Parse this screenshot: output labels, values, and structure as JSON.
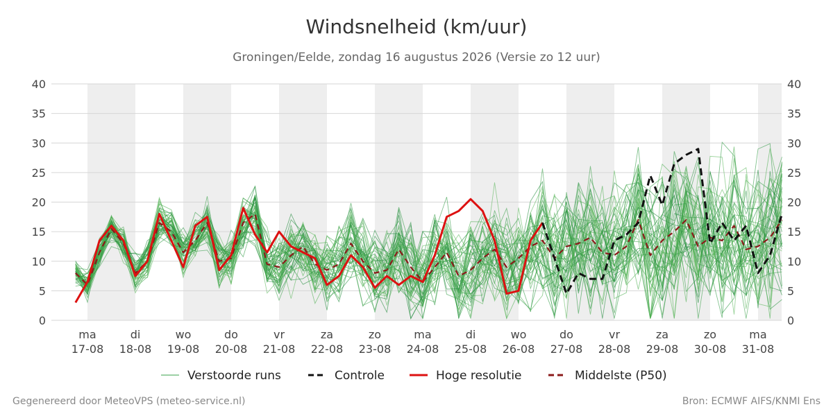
{
  "chart_data": {
    "type": "line",
    "title": "Windsnelheid (km/uur)",
    "subtitle": "Groningen/Eelde, zondag 16 augustus 2026 (Versie zo 12 uur)",
    "ylim": [
      0,
      40
    ],
    "yticks": [
      0,
      5,
      10,
      15,
      20,
      25,
      30,
      35,
      40
    ],
    "xlim": [
      -0.25,
      14.5
    ],
    "grid": true,
    "legend_position": "bottom",
    "day_ticks": [
      {
        "day": "ma",
        "date": "17-08"
      },
      {
        "day": "di",
        "date": "18-08"
      },
      {
        "day": "wo",
        "date": "19-08"
      },
      {
        "day": "do",
        "date": "20-08"
      },
      {
        "day": "vr",
        "date": "21-08"
      },
      {
        "day": "za",
        "date": "22-08"
      },
      {
        "day": "zo",
        "date": "23-08"
      },
      {
        "day": "ma",
        "date": "24-08"
      },
      {
        "day": "di",
        "date": "25-08"
      },
      {
        "day": "wo",
        "date": "26-08"
      },
      {
        "day": "do",
        "date": "27-08"
      },
      {
        "day": "vr",
        "date": "28-08"
      },
      {
        "day": "za",
        "date": "29-08"
      },
      {
        "day": "zo",
        "date": "30-08"
      },
      {
        "day": "ma",
        "date": "31-08"
      }
    ],
    "legend": [
      {
        "key": "ensemble",
        "label": "Verstoorde runs",
        "color": "#3aa04a",
        "style": "thin"
      },
      {
        "key": "control",
        "label": "Controle",
        "color": "#111111",
        "style": "dashed"
      },
      {
        "key": "hires",
        "label": "Hoge resolutie",
        "color": "#dd1111",
        "style": "solid"
      },
      {
        "key": "median",
        "label": "Middelste (P50)",
        "color": "#8b1a1a",
        "style": "dashed"
      }
    ],
    "series": [
      {
        "name": "Hoge resolutie",
        "x": [
          -0.25,
          0,
          0.25,
          0.5,
          0.75,
          1,
          1.25,
          1.5,
          1.75,
          2,
          2.25,
          2.5,
          2.75,
          3,
          3.25,
          3.5,
          3.75,
          4,
          4.25,
          4.5,
          4.75,
          5,
          5.25,
          5.5,
          5.75,
          6,
          6.25,
          6.5,
          6.75,
          7,
          7.25,
          7.5,
          7.75,
          8,
          8.25,
          8.5,
          8.75,
          9,
          9.25,
          9.5
        ],
        "values": [
          3,
          6.5,
          13.5,
          16,
          13.5,
          7.5,
          10,
          18,
          13.5,
          9,
          16,
          17.5,
          8.5,
          11,
          19,
          14.5,
          11.5,
          15,
          12.5,
          11.5,
          10.5,
          6,
          7.5,
          11,
          9,
          5.5,
          7.5,
          6,
          7.5,
          6.5,
          11,
          17.5,
          18.5,
          20.5,
          18.5,
          13.5,
          4.5,
          5,
          13.5,
          16.5
        ]
      },
      {
        "name": "Controle",
        "x": [
          9.5,
          9.75,
          10,
          10.25,
          10.5,
          10.75,
          11,
          11.25,
          11.5,
          11.75,
          12,
          12.25,
          12.5,
          12.75,
          13,
          13.25,
          13.5,
          13.75,
          14,
          14.25,
          14.5
        ],
        "values": [
          16.5,
          10.5,
          4.5,
          8,
          7,
          7,
          13.5,
          14.5,
          16.5,
          24.5,
          19.5,
          26.5,
          28,
          29,
          13,
          16.5,
          13.5,
          16,
          8,
          11,
          18
        ]
      },
      {
        "name": "Middelste (P50)",
        "x": [
          -0.25,
          0,
          0.25,
          0.5,
          0.75,
          1,
          1.25,
          1.5,
          1.75,
          2,
          2.25,
          2.5,
          2.75,
          3,
          3.25,
          3.5,
          3.75,
          4,
          4.25,
          4.5,
          4.75,
          5,
          5.25,
          5.5,
          5.75,
          6,
          6.25,
          6.5,
          6.75,
          7,
          7.25,
          7.5,
          7.75,
          8,
          8.25,
          8.5,
          8.75,
          9,
          9.25,
          9.5,
          9.75,
          10,
          10.25,
          10.5,
          10.75,
          11,
          11.25,
          11.5,
          11.75,
          12,
          12.25,
          12.5,
          12.75,
          13,
          13.25,
          13.5,
          13.75,
          14,
          14.25,
          14.5
        ],
        "values": [
          8,
          6,
          11.5,
          15.5,
          13,
          8,
          10,
          16.5,
          15,
          11.5,
          13.5,
          16.5,
          10,
          10.5,
          16.5,
          18,
          9.5,
          9,
          11,
          12.5,
          9.5,
          8.5,
          9.5,
          13,
          10,
          8,
          8.5,
          12,
          9,
          6.5,
          9,
          11.5,
          7.5,
          8.5,
          10.5,
          12,
          9,
          10.5,
          12.5,
          13.5,
          10.5,
          12.5,
          13,
          14,
          11.5,
          11,
          12.5,
          17,
          11,
          13.5,
          15,
          17,
          12.5,
          14,
          13.5,
          16,
          12,
          12.5,
          14,
          17
        ]
      }
    ]
  },
  "footer": {
    "left": "Gegenereerd door MeteoVPS (meteo-service.nl)",
    "right": "Bron: ECMWF AIFS/KNMI Ens"
  }
}
